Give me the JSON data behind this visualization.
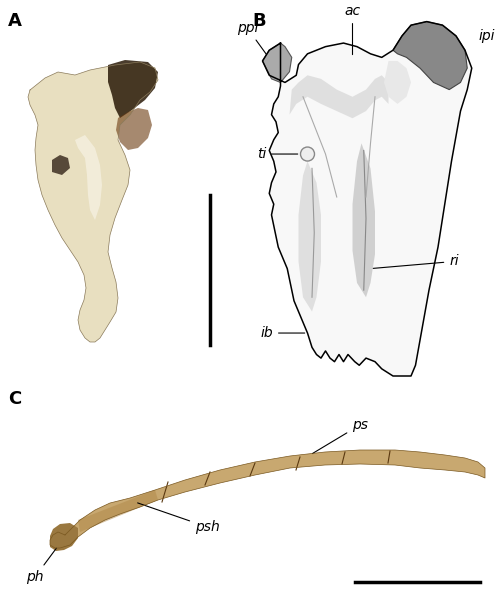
{
  "fig_width": 4.95,
  "fig_height": 6.0,
  "dpi": 100,
  "bg_color": "#ffffff",
  "panel_A_label": "A",
  "panel_B_label": "B",
  "panel_C_label": "C",
  "label_fontsize": 10,
  "panel_label_fontsize": 13
}
